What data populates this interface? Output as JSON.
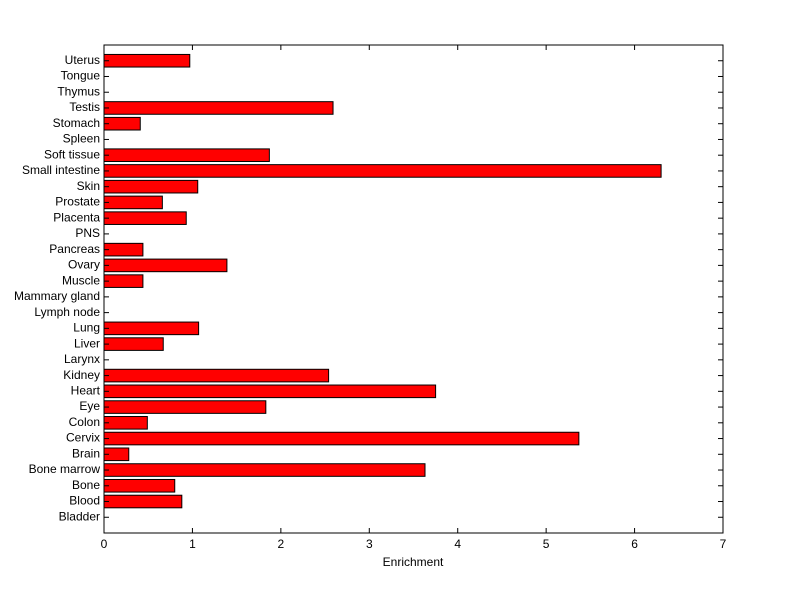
{
  "chart_data": {
    "type": "barh",
    "categories": [
      "Bladder",
      "Blood",
      "Bone",
      "Bone marrow",
      "Brain",
      "Cervix",
      "Colon",
      "Eye",
      "Heart",
      "Kidney",
      "Larynx",
      "Liver",
      "Lung",
      "Lymph node",
      "Mammary gland",
      "Muscle",
      "Ovary",
      "Pancreas",
      "PNS",
      "Placenta",
      "Prostate",
      "Skin",
      "Small intestine",
      "Soft tissue",
      "Spleen",
      "Stomach",
      "Testis",
      "Thymus",
      "Tongue",
      "Uterus"
    ],
    "values": [
      0,
      0.88,
      0.8,
      3.63,
      0.28,
      5.37,
      0.49,
      1.83,
      3.75,
      2.54,
      0,
      0.67,
      1.07,
      0,
      0,
      0.44,
      1.39,
      0.44,
      0,
      0.93,
      0.66,
      1.06,
      6.3,
      1.87,
      0,
      0.41,
      2.59,
      0,
      0,
      0.97
    ],
    "color": "#ff0000",
    "xlabel": "Enrichment",
    "xlim": [
      0,
      7
    ],
    "xticks": [
      0,
      1,
      2,
      3,
      4,
      5,
      6,
      7
    ]
  }
}
